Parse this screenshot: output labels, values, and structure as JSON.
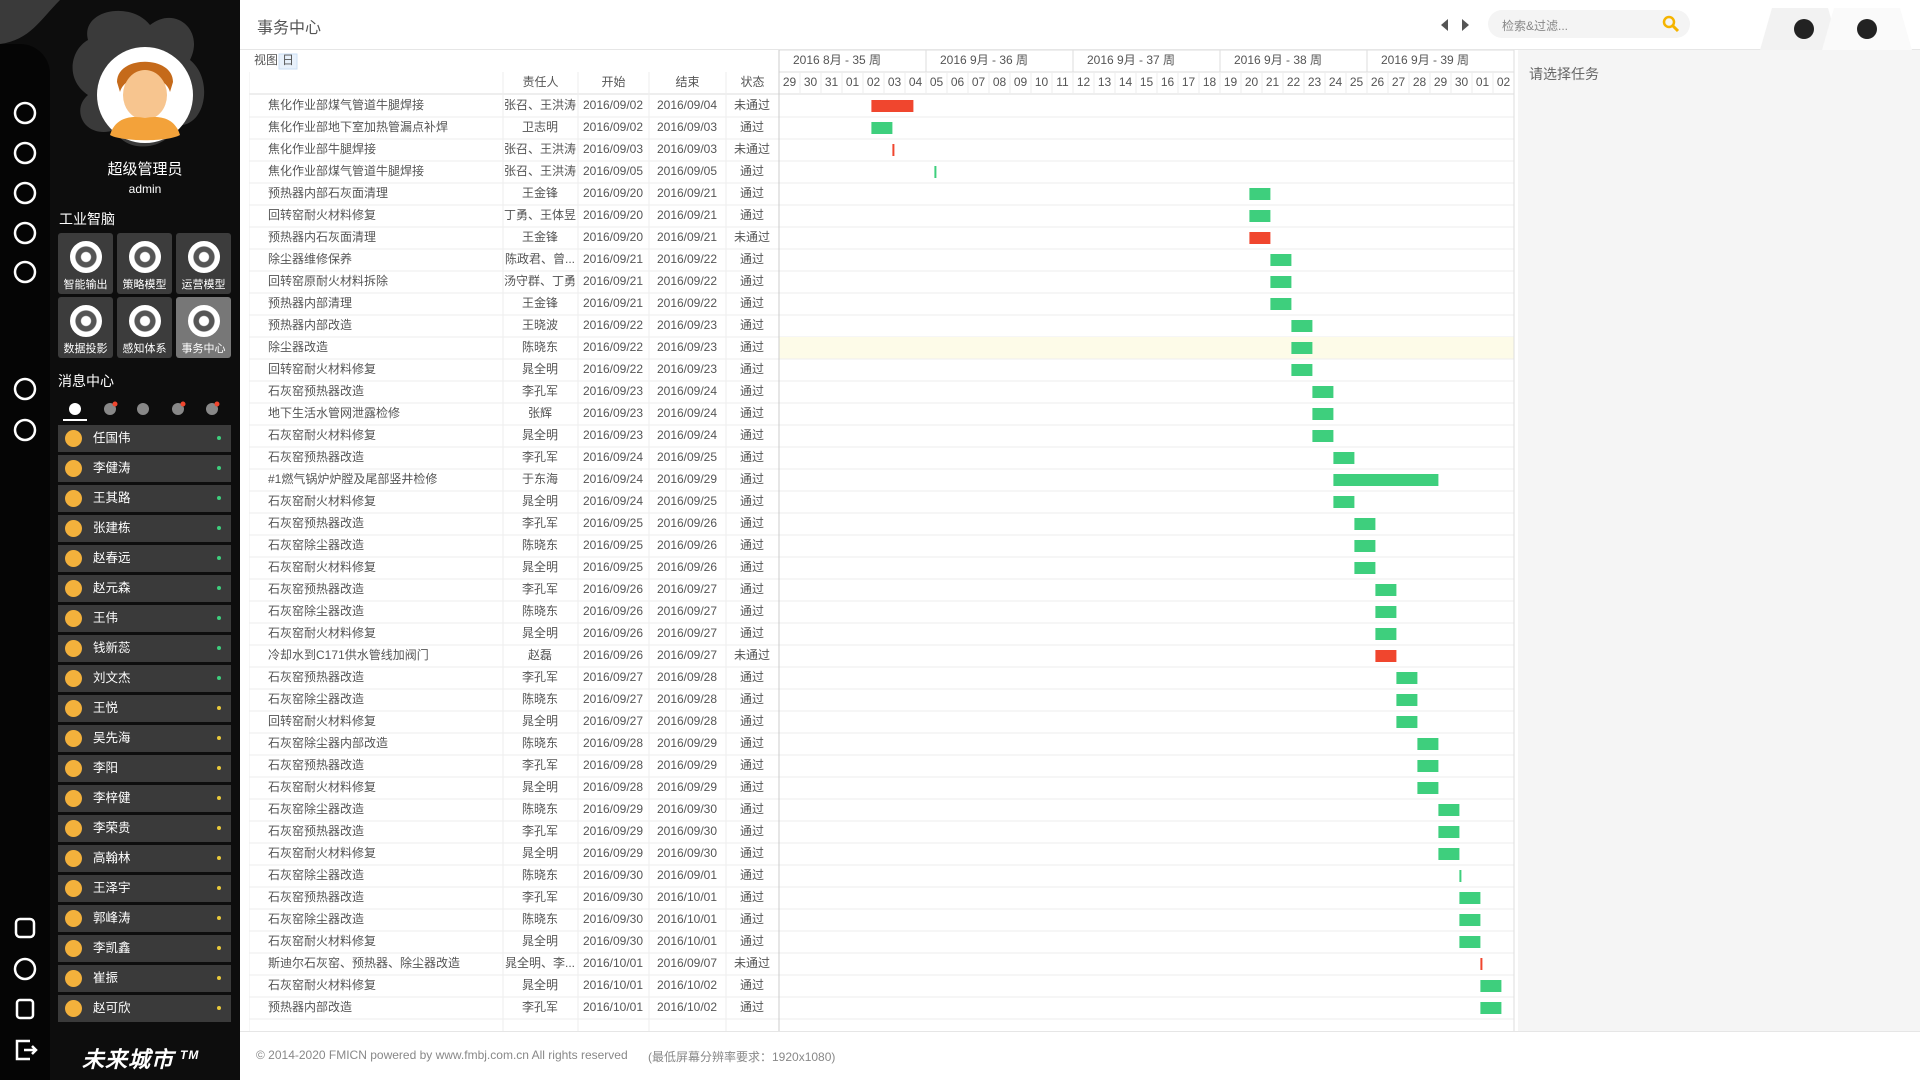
{
  "header": {
    "title": "事务中心",
    "search_placeholder": "检索&过滤..."
  },
  "sidebar": {
    "user_name": "超级管理员",
    "user_id": "admin",
    "section1_title": "工业智脑",
    "modules": [
      "智能输出",
      "策略模型",
      "运营模型",
      "数据投影",
      "感知体系",
      "事务中心"
    ],
    "section2_title": "消息中心",
    "contacts": [
      {
        "name": "任国伟",
        "dot": "#3ecf7d"
      },
      {
        "name": "李健涛",
        "dot": "#3ecf7d"
      },
      {
        "name": "王其路",
        "dot": "#3ecf7d"
      },
      {
        "name": "张建栋",
        "dot": "#3ecf7d"
      },
      {
        "name": "赵春远",
        "dot": "#3ecf7d"
      },
      {
        "name": "赵元森",
        "dot": "#3ecf7d"
      },
      {
        "name": "王伟",
        "dot": "#3ecf7d"
      },
      {
        "name": "钱新蕊",
        "dot": "#3ecf7d"
      },
      {
        "name": "刘文杰",
        "dot": "#3ecf7d"
      },
      {
        "name": "王悦",
        "dot": "#e8c93a"
      },
      {
        "name": "吴先海",
        "dot": "#e8c93a"
      },
      {
        "name": "李阳",
        "dot": "#e8c93a"
      },
      {
        "name": "李梓健",
        "dot": "#e8c93a"
      },
      {
        "name": "李荣贵",
        "dot": "#e8c93a"
      },
      {
        "name": "高翰林",
        "dot": "#e8c93a"
      },
      {
        "name": "王泽宇",
        "dot": "#e8c93a"
      },
      {
        "name": "郭峰涛",
        "dot": "#e8c93a"
      },
      {
        "name": "李凯鑫",
        "dot": "#e8c93a"
      },
      {
        "name": "崔振",
        "dot": "#e8c93a"
      },
      {
        "name": "赵可欣",
        "dot": "#e8c93a"
      }
    ],
    "logo": "未来城市",
    "logo_mark": "TM"
  },
  "gantt": {
    "view_label": "视图:",
    "view_mode": "日",
    "columns": [
      "责任人",
      "开始",
      "结束",
      "状态"
    ],
    "weeks": [
      "2016 8月 - 35 周",
      "2016 9月 - 36 周",
      "2016 9月 - 37 周",
      "2016 9月 - 38 周",
      "2016 9月 - 39 周"
    ],
    "days": [
      "29",
      "30",
      "31",
      "01",
      "02",
      "03",
      "04",
      "05",
      "06",
      "07",
      "08",
      "09",
      "10",
      "11",
      "12",
      "13",
      "14",
      "15",
      "16",
      "17",
      "18",
      "19",
      "20",
      "21",
      "22",
      "23",
      "24",
      "25",
      "26",
      "27",
      "28",
      "29",
      "30",
      "01",
      "02"
    ],
    "status_colors": {
      "通过": "#3ecf7d",
      "未通过": "#f0462e"
    },
    "tasks": [
      {
        "name": "焦化作业部煤气管道牛腿焊接",
        "owner": "张召、王洪涛",
        "start": "2016/09/02",
        "end": "2016/09/04",
        "status": "未通过"
      },
      {
        "name": "焦化作业部地下室加热管漏点补焊",
        "owner": "卫志明",
        "start": "2016/09/02",
        "end": "2016/09/03",
        "status": "通过"
      },
      {
        "name": "焦化作业部牛腿焊接",
        "owner": "张召、王洪涛",
        "start": "2016/09/03",
        "end": "2016/09/03",
        "status": "未通过"
      },
      {
        "name": "焦化作业部煤气管道牛腿焊接",
        "owner": "张召、王洪涛",
        "start": "2016/09/05",
        "end": "2016/09/05",
        "status": "通过"
      },
      {
        "name": "预热器内部石灰面清理",
        "owner": "王金锋",
        "start": "2016/09/20",
        "end": "2016/09/21",
        "status": "通过"
      },
      {
        "name": "回转窑耐火材料修复",
        "owner": "丁勇、王体昱",
        "start": "2016/09/20",
        "end": "2016/09/21",
        "status": "通过"
      },
      {
        "name": "预热器内石灰面清理",
        "owner": "王金锋",
        "start": "2016/09/20",
        "end": "2016/09/21",
        "status": "未通过"
      },
      {
        "name": "除尘器维修保养",
        "owner": "陈政君、曾...",
        "start": "2016/09/21",
        "end": "2016/09/22",
        "status": "通过"
      },
      {
        "name": "回转窑原耐火材料拆除",
        "owner": "汤守群、丁勇",
        "start": "2016/09/21",
        "end": "2016/09/22",
        "status": "通过"
      },
      {
        "name": "预热器内部清理",
        "owner": "王金锋",
        "start": "2016/09/21",
        "end": "2016/09/22",
        "status": "通过"
      },
      {
        "name": "预热器内部改造",
        "owner": "王晓波",
        "start": "2016/09/22",
        "end": "2016/09/23",
        "status": "通过"
      },
      {
        "name": "除尘器改造",
        "owner": "陈晓东",
        "start": "2016/09/22",
        "end": "2016/09/23",
        "status": "通过"
      },
      {
        "name": "回转窑耐火材料修复",
        "owner": "晁全明",
        "start": "2016/09/22",
        "end": "2016/09/23",
        "status": "通过"
      },
      {
        "name": "石灰窑预热器改造",
        "owner": "李孔军",
        "start": "2016/09/23",
        "end": "2016/09/24",
        "status": "通过"
      },
      {
        "name": "地下生活水管网泄露检修",
        "owner": "张辉",
        "start": "2016/09/23",
        "end": "2016/09/24",
        "status": "通过"
      },
      {
        "name": "石灰窑耐火材料修复",
        "owner": "晁全明",
        "start": "2016/09/23",
        "end": "2016/09/24",
        "status": "通过"
      },
      {
        "name": "石灰窑预热器改造",
        "owner": "李孔军",
        "start": "2016/09/24",
        "end": "2016/09/25",
        "status": "通过"
      },
      {
        "name": "#1燃气锅炉炉膛及尾部竖井检修",
        "owner": "于东海",
        "start": "2016/09/24",
        "end": "2016/09/29",
        "status": "通过"
      },
      {
        "name": "石灰窑耐火材料修复",
        "owner": "晁全明",
        "start": "2016/09/24",
        "end": "2016/09/25",
        "status": "通过"
      },
      {
        "name": "石灰窑预热器改造",
        "owner": "李孔军",
        "start": "2016/09/25",
        "end": "2016/09/26",
        "status": "通过"
      },
      {
        "name": "石灰窑除尘器改造",
        "owner": "陈晓东",
        "start": "2016/09/25",
        "end": "2016/09/26",
        "status": "通过"
      },
      {
        "name": "石灰窑耐火材料修复",
        "owner": "晁全明",
        "start": "2016/09/25",
        "end": "2016/09/26",
        "status": "通过"
      },
      {
        "name": "石灰窑预热器改造",
        "owner": "李孔军",
        "start": "2016/09/26",
        "end": "2016/09/27",
        "status": "通过"
      },
      {
        "name": "石灰窑除尘器改造",
        "owner": "陈晓东",
        "start": "2016/09/26",
        "end": "2016/09/27",
        "status": "通过"
      },
      {
        "name": "石灰窑耐火材料修复",
        "owner": "晁全明",
        "start": "2016/09/26",
        "end": "2016/09/27",
        "status": "通过"
      },
      {
        "name": "冷却水到C171供水管线加阀门",
        "owner": "赵磊",
        "start": "2016/09/26",
        "end": "2016/09/27",
        "status": "未通过"
      },
      {
        "name": "石灰窑预热器改造",
        "owner": "李孔军",
        "start": "2016/09/27",
        "end": "2016/09/28",
        "status": "通过"
      },
      {
        "name": "石灰窑除尘器改造",
        "owner": "陈晓东",
        "start": "2016/09/27",
        "end": "2016/09/28",
        "status": "通过"
      },
      {
        "name": "回转窑耐火材料修复",
        "owner": "晁全明",
        "start": "2016/09/27",
        "end": "2016/09/28",
        "status": "通过"
      },
      {
        "name": "石灰窑除尘器内部改造",
        "owner": "陈晓东",
        "start": "2016/09/28",
        "end": "2016/09/29",
        "status": "通过"
      },
      {
        "name": "石灰窑预热器改造",
        "owner": "李孔军",
        "start": "2016/09/28",
        "end": "2016/09/29",
        "status": "通过"
      },
      {
        "name": "石灰窑耐火材料修复",
        "owner": "晁全明",
        "start": "2016/09/28",
        "end": "2016/09/29",
        "status": "通过"
      },
      {
        "name": "石灰窑除尘器改造",
        "owner": "陈晓东",
        "start": "2016/09/29",
        "end": "2016/09/30",
        "status": "通过"
      },
      {
        "name": "石灰窑预热器改造",
        "owner": "李孔军",
        "start": "2016/09/29",
        "end": "2016/09/30",
        "status": "通过"
      },
      {
        "name": "石灰窑耐火材料修复",
        "owner": "晁全明",
        "start": "2016/09/29",
        "end": "2016/09/30",
        "status": "通过"
      },
      {
        "name": "石灰窑除尘器改造",
        "owner": "陈晓东",
        "start": "2016/09/30",
        "end": "2016/09/01",
        "status": "通过"
      },
      {
        "name": "石灰窑预热器改造",
        "owner": "李孔军",
        "start": "2016/09/30",
        "end": "2016/10/01",
        "status": "通过"
      },
      {
        "name": "石灰窑除尘器改造",
        "owner": "陈晓东",
        "start": "2016/09/30",
        "end": "2016/10/01",
        "status": "通过"
      },
      {
        "name": "石灰窑耐火材料修复",
        "owner": "晁全明",
        "start": "2016/09/30",
        "end": "2016/10/01",
        "status": "通过"
      },
      {
        "name": "斯迪尔石灰窑、预热器、除尘器改造",
        "owner": "晁全明、李...",
        "start": "2016/10/01",
        "end": "2016/09/07",
        "status": "未通过"
      },
      {
        "name": "石灰窑耐火材料修复",
        "owner": "晁全明",
        "start": "2016/10/01",
        "end": "2016/10/02",
        "status": "通过"
      },
      {
        "name": "预热器内部改造",
        "owner": "李孔军",
        "start": "2016/10/01",
        "end": "2016/10/02",
        "status": "通过"
      }
    ]
  },
  "detail": {
    "placeholder": "请选择任务"
  },
  "footer": {
    "copyright": "© 2014-2020 FMICN powered by www.fmbj.com.cn All rights reserved",
    "note": "(最低屏幕分辨率要求：1920x1080)"
  }
}
